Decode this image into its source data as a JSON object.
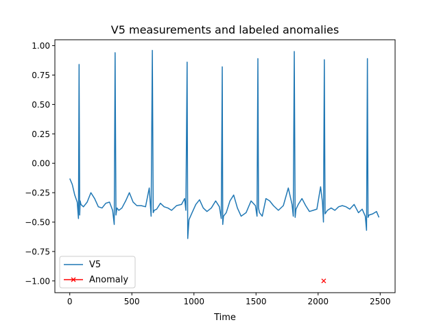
{
  "chart_data": {
    "type": "line",
    "title": "V5 measurements and labeled anomalies",
    "xlabel": "Time",
    "ylabel": "",
    "xlim": [
      -120,
      2620
    ],
    "ylim": [
      -1.1,
      1.05
    ],
    "xticks": [
      0,
      500,
      1000,
      1500,
      2000,
      2500
    ],
    "yticks": [
      -1.0,
      -0.75,
      -0.5,
      -0.25,
      0.0,
      0.25,
      0.5,
      0.75,
      1.0
    ],
    "xtick_labels": [
      "0",
      "500",
      "1000",
      "1500",
      "2000",
      "2500"
    ],
    "ytick_labels": [
      "−1.00",
      "−0.75",
      "−0.50",
      "−0.25",
      "0.00",
      "0.25",
      "0.50",
      "0.75",
      "1.00"
    ],
    "grid": false,
    "legend_position": "lower left",
    "series": [
      {
        "name": "V5",
        "kind": "line",
        "color": "#1f77b4",
        "x": [
          0,
          20,
          40,
          60,
          70,
          75,
          80,
          84,
          90,
          110,
          140,
          170,
          200,
          230,
          260,
          290,
          320,
          345,
          358,
          365,
          372,
          380,
          395,
          420,
          450,
          480,
          510,
          540,
          575,
          610,
          640,
          655,
          665,
          672,
          680,
          700,
          730,
          760,
          790,
          820,
          860,
          900,
          925,
          935,
          945,
          950,
          960,
          985,
          1015,
          1045,
          1075,
          1105,
          1140,
          1175,
          1205,
          1220,
          1228,
          1232,
          1238,
          1260,
          1290,
          1320,
          1350,
          1380,
          1420,
          1460,
          1495,
          1508,
          1515,
          1520,
          1528,
          1550,
          1580,
          1610,
          1640,
          1680,
          1720,
          1760,
          1790,
          1800,
          1808,
          1815,
          1822,
          1840,
          1870,
          1900,
          1930,
          1960,
          1990,
          2020,
          2035,
          2043,
          2050,
          2056,
          2075,
          2105,
          2135,
          2165,
          2195,
          2225,
          2255,
          2290,
          2325,
          2355,
          2380,
          2390,
          2397,
          2402,
          2410,
          2440,
          2470,
          2490
        ],
        "y": [
          -0.13,
          -0.18,
          -0.27,
          -0.33,
          -0.47,
          0.84,
          -0.44,
          -0.32,
          -0.35,
          -0.37,
          -0.33,
          -0.25,
          -0.3,
          -0.37,
          -0.38,
          -0.34,
          -0.33,
          -0.4,
          -0.52,
          0.94,
          -0.44,
          -0.38,
          -0.4,
          -0.38,
          -0.32,
          -0.25,
          -0.33,
          -0.36,
          -0.36,
          -0.37,
          -0.21,
          -0.45,
          0.96,
          -0.42,
          -0.4,
          -0.39,
          -0.34,
          -0.37,
          -0.38,
          -0.4,
          -0.36,
          -0.35,
          -0.3,
          -0.4,
          0.86,
          -0.64,
          -0.48,
          -0.42,
          -0.35,
          -0.31,
          -0.38,
          -0.41,
          -0.38,
          -0.32,
          -0.37,
          -0.47,
          0.82,
          -0.52,
          -0.45,
          -0.42,
          -0.32,
          -0.27,
          -0.38,
          -0.45,
          -0.42,
          -0.32,
          -0.36,
          -0.45,
          0.89,
          -0.38,
          -0.42,
          -0.45,
          -0.3,
          -0.32,
          -0.36,
          -0.4,
          -0.36,
          -0.21,
          -0.35,
          -0.45,
          0.95,
          -0.46,
          -0.39,
          -0.35,
          -0.3,
          -0.36,
          -0.41,
          -0.4,
          -0.39,
          -0.2,
          -0.33,
          -0.5,
          0.88,
          -0.43,
          -0.4,
          -0.38,
          -0.4,
          -0.37,
          -0.36,
          -0.37,
          -0.39,
          -0.35,
          -0.42,
          -0.39,
          -0.45,
          -0.57,
          0.89,
          -0.46,
          -0.44,
          -0.43,
          -0.41,
          -0.46
        ]
      },
      {
        "name": "Anomaly",
        "kind": "marker",
        "color": "#ff0000",
        "marker": "x",
        "x": [
          2045
        ],
        "y": [
          -1.0
        ]
      }
    ]
  }
}
